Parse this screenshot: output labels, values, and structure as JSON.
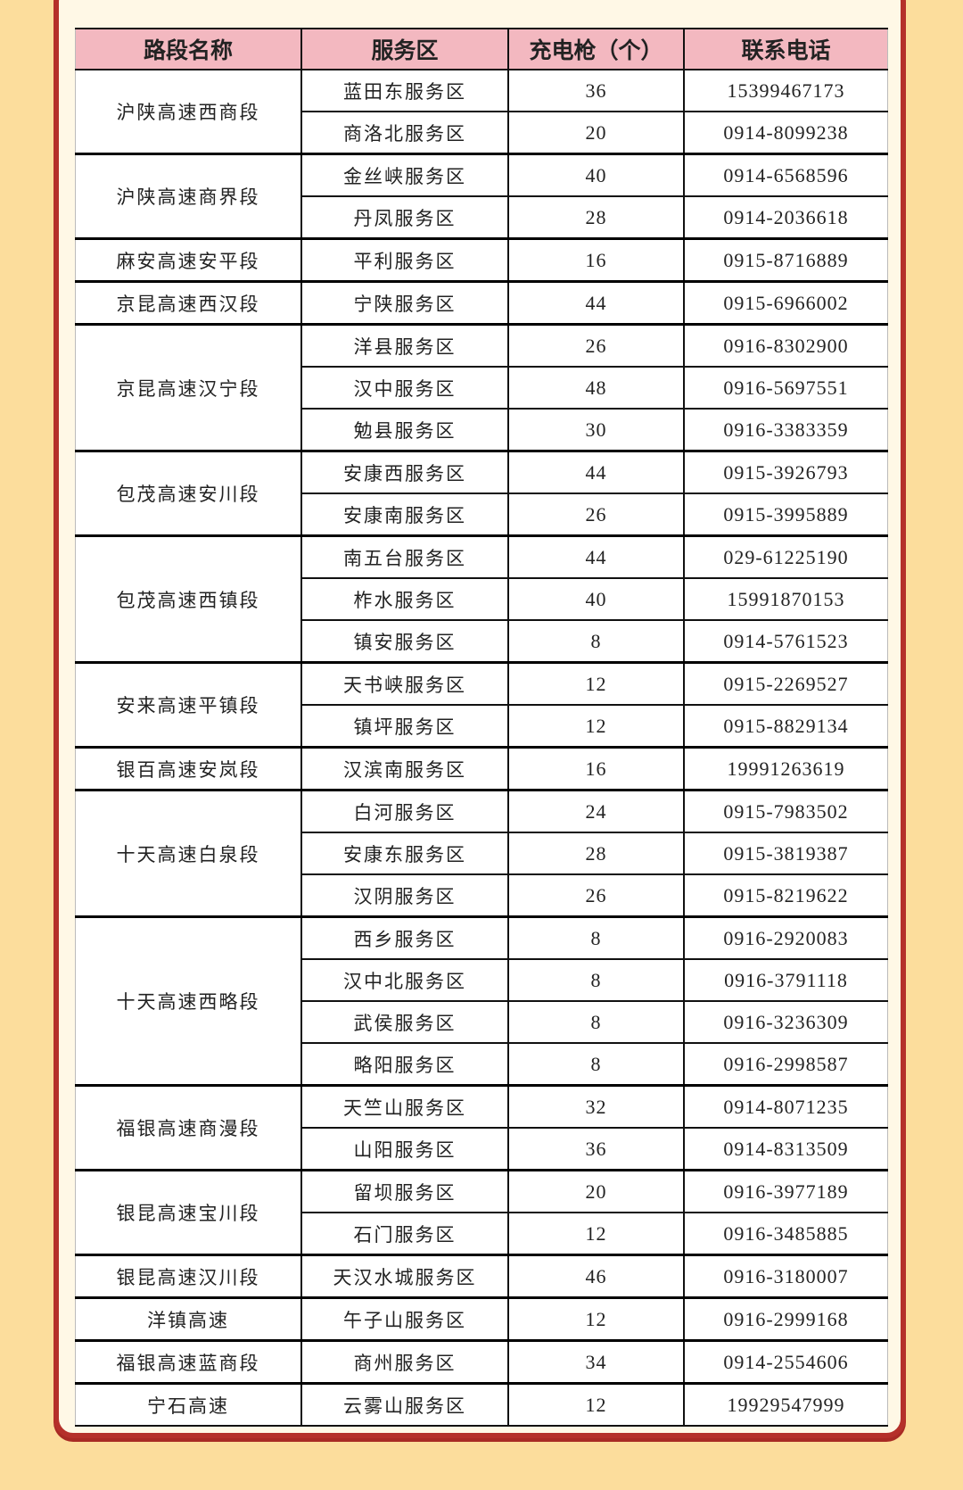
{
  "table": {
    "headers": [
      "路段名称",
      "服务区",
      "充电枪（个）",
      "联系电话"
    ],
    "groups": [
      {
        "road": "沪陕高速西商段",
        "areas": [
          {
            "name": "蓝田东服务区",
            "guns": "36",
            "phone": "15399467173"
          },
          {
            "name": "商洛北服务区",
            "guns": "20",
            "phone": "0914-8099238"
          }
        ]
      },
      {
        "road": "沪陕高速商界段",
        "areas": [
          {
            "name": "金丝峡服务区",
            "guns": "40",
            "phone": "0914-6568596"
          },
          {
            "name": "丹凤服务区",
            "guns": "28",
            "phone": "0914-2036618"
          }
        ]
      },
      {
        "road": "麻安高速安平段",
        "areas": [
          {
            "name": "平利服务区",
            "guns": "16",
            "phone": "0915-8716889"
          }
        ]
      },
      {
        "road": "京昆高速西汉段",
        "areas": [
          {
            "name": "宁陕服务区",
            "guns": "44",
            "phone": "0915-6966002"
          }
        ]
      },
      {
        "road": "京昆高速汉宁段",
        "areas": [
          {
            "name": "洋县服务区",
            "guns": "26",
            "phone": "0916-8302900"
          },
          {
            "name": "汉中服务区",
            "guns": "48",
            "phone": "0916-5697551"
          },
          {
            "name": "勉县服务区",
            "guns": "30",
            "phone": "0916-3383359"
          }
        ]
      },
      {
        "road": "包茂高速安川段",
        "areas": [
          {
            "name": "安康西服务区",
            "guns": "44",
            "phone": "0915-3926793"
          },
          {
            "name": "安康南服务区",
            "guns": "26",
            "phone": "0915-3995889"
          }
        ]
      },
      {
        "road": "包茂高速西镇段",
        "areas": [
          {
            "name": "南五台服务区",
            "guns": "44",
            "phone": "029-61225190"
          },
          {
            "name": "柞水服务区",
            "guns": "40",
            "phone": "15991870153"
          },
          {
            "name": "镇安服务区",
            "guns": "8",
            "phone": "0914-5761523"
          }
        ]
      },
      {
        "road": "安来高速平镇段",
        "areas": [
          {
            "name": "天书峡服务区",
            "guns": "12",
            "phone": "0915-2269527"
          },
          {
            "name": "镇坪服务区",
            "guns": "12",
            "phone": "0915-8829134"
          }
        ]
      },
      {
        "road": "银百高速安岚段",
        "areas": [
          {
            "name": "汉滨南服务区",
            "guns": "16",
            "phone": "19991263619"
          }
        ]
      },
      {
        "road": "十天高速白泉段",
        "areas": [
          {
            "name": "白河服务区",
            "guns": "24",
            "phone": "0915-7983502"
          },
          {
            "name": "安康东服务区",
            "guns": "28",
            "phone": "0915-3819387"
          },
          {
            "name": "汉阴服务区",
            "guns": "26",
            "phone": "0915-8219622"
          }
        ]
      },
      {
        "road": "十天高速西略段",
        "areas": [
          {
            "name": "西乡服务区",
            "guns": "8",
            "phone": "0916-2920083"
          },
          {
            "name": "汉中北服务区",
            "guns": "8",
            "phone": "0916-3791118"
          },
          {
            "name": "武侯服务区",
            "guns": "8",
            "phone": "0916-3236309"
          },
          {
            "name": "略阳服务区",
            "guns": "8",
            "phone": "0916-2998587"
          }
        ]
      },
      {
        "road": "福银高速商漫段",
        "areas": [
          {
            "name": "天竺山服务区",
            "guns": "32",
            "phone": "0914-8071235"
          },
          {
            "name": "山阳服务区",
            "guns": "36",
            "phone": "0914-8313509"
          }
        ]
      },
      {
        "road": "银昆高速宝川段",
        "areas": [
          {
            "name": "留坝服务区",
            "guns": "20",
            "phone": "0916-3977189"
          },
          {
            "name": "石门服务区",
            "guns": "12",
            "phone": "0916-3485885"
          }
        ]
      },
      {
        "road": "银昆高速汉川段",
        "areas": [
          {
            "name": "天汉水城服务区",
            "guns": "46",
            "phone": "0916-3180007"
          }
        ]
      },
      {
        "road": "洋镇高速",
        "areas": [
          {
            "name": "午子山服务区",
            "guns": "12",
            "phone": "0916-2999168"
          }
        ]
      },
      {
        "road": "福银高速蓝商段",
        "areas": [
          {
            "name": "商州服务区",
            "guns": "34",
            "phone": "0914-2554606"
          }
        ]
      },
      {
        "road": "宁石高速",
        "areas": [
          {
            "name": "云雾山服务区",
            "guns": "12",
            "phone": "19929547999"
          }
        ]
      }
    ]
  },
  "colors": {
    "background": "#fcdd9c",
    "card": "#fff8e6",
    "border": "#b5302a",
    "header": "#f3b8c0"
  }
}
